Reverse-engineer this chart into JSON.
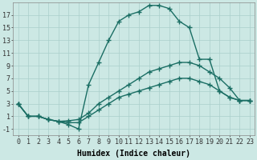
{
  "xlabel": "Humidex (Indice chaleur)",
  "bg_color": "#cce8e4",
  "grid_color": "#aacfcb",
  "line_color": "#1a6e64",
  "xlim": [
    -0.5,
    23.5
  ],
  "ylim": [
    -2,
    19
  ],
  "xticks": [
    0,
    1,
    2,
    3,
    4,
    5,
    6,
    7,
    8,
    9,
    10,
    11,
    12,
    13,
    14,
    15,
    16,
    17,
    18,
    19,
    20,
    21,
    22,
    23
  ],
  "yticks": [
    -1,
    1,
    3,
    5,
    7,
    9,
    11,
    13,
    15,
    17
  ],
  "line_main_x": [
    0,
    1,
    2,
    3,
    4,
    5,
    6,
    7,
    8,
    9,
    10,
    11,
    12,
    13,
    14,
    15,
    16,
    17,
    18,
    19,
    20,
    21,
    22,
    23
  ],
  "line_main_y": [
    3,
    1,
    1,
    0.5,
    0.2,
    -0.3,
    -1,
    6,
    9.5,
    13,
    16,
    17,
    17.5,
    18.5,
    18.5,
    18,
    16,
    15,
    10,
    10,
    5,
    4,
    3.5,
    3.5
  ],
  "line_mid_x": [
    0,
    1,
    2,
    3,
    4,
    5,
    6,
    7,
    8,
    9,
    10,
    11,
    12,
    13,
    14,
    15,
    16,
    17,
    18,
    19,
    20,
    21,
    22,
    23
  ],
  "line_mid_y": [
    3,
    1,
    1,
    0.5,
    0.2,
    0.3,
    0.5,
    1.5,
    3,
    4,
    5,
    6,
    7,
    8,
    8.5,
    9,
    9.5,
    9.5,
    9,
    8,
    7,
    5.5,
    3.5,
    3.5
  ],
  "line_low_x": [
    0,
    1,
    2,
    3,
    4,
    5,
    6,
    7,
    8,
    9,
    10,
    11,
    12,
    13,
    14,
    15,
    16,
    17,
    18,
    19,
    20,
    21,
    22,
    23
  ],
  "line_low_y": [
    3,
    1,
    1,
    0.5,
    0.2,
    0,
    0,
    1,
    2,
    3,
    4,
    4.5,
    5,
    5.5,
    6,
    6.5,
    7,
    7,
    6.5,
    6,
    5,
    4,
    3.5,
    3.5
  ],
  "marker": "+",
  "marker_size": 4,
  "line_width": 1.0,
  "font_size_label": 7,
  "font_size_tick": 6
}
